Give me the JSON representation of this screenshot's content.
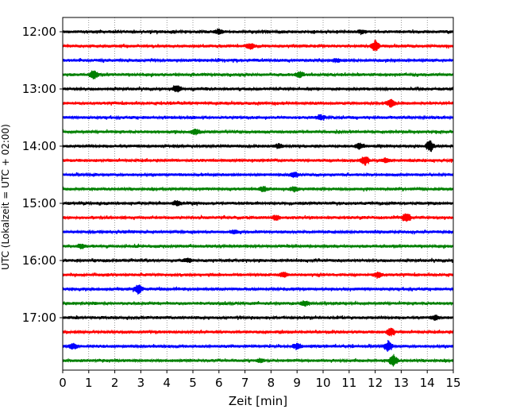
{
  "chart_data": {
    "type": "line",
    "title": "",
    "xlabel": "Zeit  [min]",
    "ylabel": "UTC (Lokalzeit = UTC + 02:00)",
    "xlim": [
      0,
      15
    ],
    "x_ticks": [
      0,
      1,
      2,
      3,
      4,
      5,
      6,
      7,
      8,
      9,
      10,
      11,
      12,
      13,
      14,
      15
    ],
    "x_tick_labels": [
      "0",
      "1",
      "2",
      "3",
      "4",
      "5",
      "6",
      "7",
      "8",
      "9",
      "10",
      "11",
      "12",
      "13",
      "14",
      "15"
    ],
    "y_tick_labels": [
      "12:00",
      "13:00",
      "14:00",
      "15:00",
      "16:00",
      "17:00"
    ],
    "grid": "vertical dotted",
    "trace_interval_minutes": 15,
    "color_cycle": [
      "#000000",
      "#ff0000",
      "#0000ff",
      "#008000"
    ],
    "traces": [
      {
        "start": "12:00",
        "color": "#000000",
        "events": [
          {
            "t": 6.0,
            "amp": 0.4
          },
          {
            "t": 11.5,
            "amp": 0.3
          }
        ]
      },
      {
        "start": "12:15",
        "color": "#ff0000",
        "events": [
          {
            "t": 7.2,
            "amp": 0.5
          },
          {
            "t": 12.0,
            "amp": 1.0
          }
        ]
      },
      {
        "start": "12:30",
        "color": "#0000ff",
        "events": [
          {
            "t": 10.5,
            "amp": 0.3
          }
        ]
      },
      {
        "start": "12:45",
        "color": "#008000",
        "events": [
          {
            "t": 1.2,
            "amp": 0.7
          },
          {
            "t": 9.1,
            "amp": 0.5
          }
        ]
      },
      {
        "start": "13:00",
        "color": "#000000",
        "events": [
          {
            "t": 4.4,
            "amp": 0.6
          }
        ]
      },
      {
        "start": "13:15",
        "color": "#ff0000",
        "events": [
          {
            "t": 12.6,
            "amp": 0.6
          }
        ]
      },
      {
        "start": "13:30",
        "color": "#0000ff",
        "events": [
          {
            "t": 9.9,
            "amp": 0.4
          }
        ]
      },
      {
        "start": "13:45",
        "color": "#008000",
        "events": [
          {
            "t": 5.1,
            "amp": 0.5
          }
        ]
      },
      {
        "start": "14:00",
        "color": "#000000",
        "events": [
          {
            "t": 8.3,
            "amp": 0.4
          },
          {
            "t": 11.4,
            "amp": 0.5
          },
          {
            "t": 14.1,
            "amp": 0.9
          }
        ]
      },
      {
        "start": "14:15",
        "color": "#ff0000",
        "events": [
          {
            "t": 11.6,
            "amp": 0.8
          },
          {
            "t": 12.4,
            "amp": 0.4
          }
        ]
      },
      {
        "start": "14:30",
        "color": "#0000ff",
        "events": [
          {
            "t": 8.9,
            "amp": 0.4
          }
        ]
      },
      {
        "start": "14:45",
        "color": "#008000",
        "events": [
          {
            "t": 7.7,
            "amp": 0.4
          },
          {
            "t": 8.9,
            "amp": 0.4
          }
        ]
      },
      {
        "start": "15:00",
        "color": "#000000",
        "events": [
          {
            "t": 4.4,
            "amp": 0.4
          }
        ]
      },
      {
        "start": "15:15",
        "color": "#ff0000",
        "events": [
          {
            "t": 13.2,
            "amp": 0.9
          },
          {
            "t": 8.2,
            "amp": 0.4
          }
        ]
      },
      {
        "start": "15:30",
        "color": "#0000ff",
        "events": [
          {
            "t": 6.6,
            "amp": 0.3
          }
        ]
      },
      {
        "start": "15:45",
        "color": "#008000",
        "events": [
          {
            "t": 0.7,
            "amp": 0.4
          }
        ]
      },
      {
        "start": "16:00",
        "color": "#000000",
        "events": [
          {
            "t": 4.8,
            "amp": 0.3
          }
        ]
      },
      {
        "start": "16:15",
        "color": "#ff0000",
        "events": [
          {
            "t": 8.5,
            "amp": 0.5
          },
          {
            "t": 12.1,
            "amp": 0.5
          }
        ]
      },
      {
        "start": "16:30",
        "color": "#0000ff",
        "events": [
          {
            "t": 2.9,
            "amp": 0.8
          }
        ]
      },
      {
        "start": "16:45",
        "color": "#008000",
        "events": [
          {
            "t": 9.3,
            "amp": 0.4
          }
        ]
      },
      {
        "start": "17:00",
        "color": "#000000",
        "events": [
          {
            "t": 14.3,
            "amp": 0.4
          }
        ]
      },
      {
        "start": "17:15",
        "color": "#ff0000",
        "events": [
          {
            "t": 12.6,
            "amp": 0.7
          }
        ]
      },
      {
        "start": "17:30",
        "color": "#0000ff",
        "events": [
          {
            "t": 0.4,
            "amp": 0.5
          },
          {
            "t": 9.0,
            "amp": 0.5
          },
          {
            "t": 12.5,
            "amp": 0.9
          }
        ]
      },
      {
        "start": "17:45",
        "color": "#008000",
        "events": [
          {
            "t": 12.7,
            "amp": 1.0
          },
          {
            "t": 7.6,
            "amp": 0.3
          }
        ]
      }
    ]
  }
}
